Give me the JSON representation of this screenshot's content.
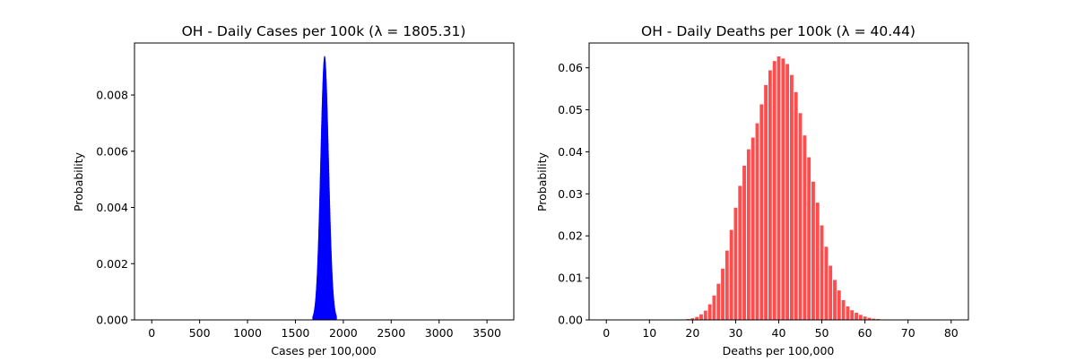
{
  "chart_data": [
    {
      "type": "bar",
      "title": "OH - Daily Cases per 100k (λ = 1805.31)",
      "xlabel": "Cases per 100,000",
      "ylabel": "Probability",
      "xlim": [
        -180,
        3780
      ],
      "ylim": [
        0,
        0.00985
      ],
      "x_ticks": [
        0,
        500,
        1000,
        1500,
        2000,
        2500,
        3000,
        3500
      ],
      "x_tick_labels": [
        "0",
        "500",
        "1000",
        "1500",
        "2000",
        "2500",
        "3000",
        "3500"
      ],
      "y_ticks": [
        0,
        0.002,
        0.004,
        0.006,
        0.008
      ],
      "y_tick_labels": [
        "0.000",
        "0.002",
        "0.004",
        "0.006",
        "0.008"
      ],
      "distribution": "poisson",
      "lambda": 1805.31,
      "x_range": [
        1680,
        1930
      ],
      "bar_color": "#0000ff",
      "bar_opacity": 0.7,
      "grid": false,
      "legend": "none"
    },
    {
      "type": "bar",
      "title": "OH - Daily Deaths per 100k (λ = 40.44)",
      "xlabel": "Deaths per 100,000",
      "ylabel": "Probability",
      "xlim": [
        -4,
        84
      ],
      "ylim": [
        0,
        0.0659
      ],
      "x_ticks": [
        0,
        10,
        20,
        30,
        40,
        50,
        60,
        70,
        80
      ],
      "x_tick_labels": [
        "0",
        "10",
        "20",
        "30",
        "40",
        "50",
        "60",
        "70",
        "80"
      ],
      "y_ticks": [
        0,
        0.01,
        0.02,
        0.03,
        0.04,
        0.05,
        0.06
      ],
      "y_tick_labels": [
        "0.00",
        "0.01",
        "0.02",
        "0.03",
        "0.04",
        "0.05",
        "0.06"
      ],
      "categories": [
        18,
        19,
        20,
        21,
        22,
        23,
        24,
        25,
        26,
        27,
        28,
        29,
        30,
        31,
        32,
        33,
        34,
        35,
        36,
        37,
        38,
        39,
        40,
        41,
        42,
        43,
        44,
        45,
        46,
        47,
        48,
        49,
        50,
        51,
        52,
        53,
        54,
        55,
        56,
        57,
        58,
        59,
        60,
        61,
        62,
        63,
        64,
        65,
        66,
        67
      ],
      "values": [
        0.0001,
        0.0002,
        0.0004,
        0.0007,
        0.0013,
        0.0022,
        0.0037,
        0.0058,
        0.0086,
        0.0122,
        0.0165,
        0.0214,
        0.0267,
        0.0319,
        0.0367,
        0.0406,
        0.0434,
        0.0468,
        0.0513,
        0.0559,
        0.0594,
        0.0616,
        0.0627,
        0.0622,
        0.0609,
        0.0583,
        0.0542,
        0.0492,
        0.0439,
        0.0387,
        0.0329,
        0.0279,
        0.0225,
        0.0174,
        0.0129,
        0.0095,
        0.007,
        0.0047,
        0.0032,
        0.0023,
        0.0017,
        0.0012,
        0.0008,
        0.0005,
        0.0003,
        0.0002,
        0.0001,
        6e-05,
        3e-05,
        2e-05
      ],
      "bar_color": "#ff0000",
      "bar_opacity": 0.7,
      "grid": false,
      "legend": "none"
    }
  ]
}
